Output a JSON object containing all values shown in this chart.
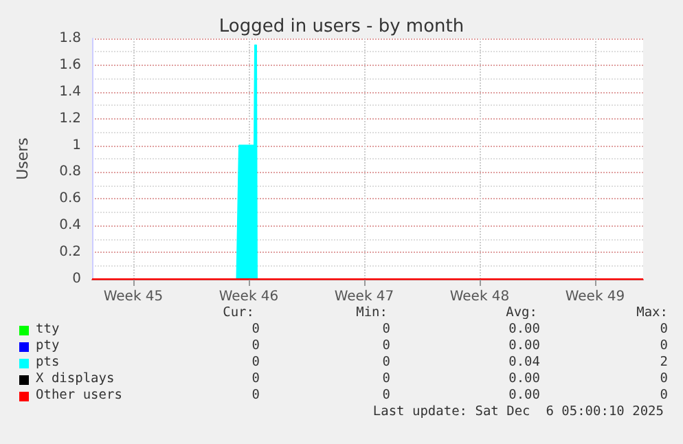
{
  "chart_data": {
    "type": "area",
    "title": "Logged in users - by month",
    "ylabel": "Users",
    "xlim": [
      "2025-11-02T19:00",
      "2025-12-06T05:00"
    ],
    "xticks": [
      {
        "value": "2025-11-05T07:00",
        "label": "Week 45"
      },
      {
        "value": "2025-11-12T07:00",
        "label": "Week 46"
      },
      {
        "value": "2025-11-19T07:00",
        "label": "Week 47"
      },
      {
        "value": "2025-11-26T07:00",
        "label": "Week 48"
      },
      {
        "value": "2025-12-03T07:00",
        "label": "Week 49"
      }
    ],
    "ylim": [
      0,
      1.8
    ],
    "yticks": [
      0,
      0.2,
      0.4,
      0.6,
      0.8,
      1.0,
      1.2,
      1.4,
      1.6,
      1.8
    ],
    "grid": true,
    "legend": "bottom",
    "marker": "none",
    "series": [
      {
        "name": "tty",
        "type": "line",
        "color": "#00ff00"
      },
      {
        "name": "pty",
        "type": "line",
        "color": "#0000ff"
      },
      {
        "name": "pts",
        "color": "#00ffff",
        "x": [
          "2025-11-02T19:00",
          "2025-11-11T13:30",
          "2025-11-11T17:00",
          "2025-11-12T15:00",
          "2025-11-12T16:00",
          "2025-11-12T18:00",
          "2025-11-12T19:00",
          "2025-12-06T05:00"
        ],
        "values": [
          0,
          0,
          1,
          1,
          1.75,
          1.75,
          0,
          0
        ]
      },
      {
        "name": "X displays",
        "type": "line",
        "color": "#000000"
      },
      {
        "name": "Other users",
        "type": "line",
        "color": "#ff0000",
        "x": [
          "2025-11-02T19:00",
          "2025-12-06T05:00"
        ],
        "values": [
          0,
          0
        ]
      }
    ],
    "annotations": [
      "Cur:",
      "Min:",
      "Avg:",
      "Max:",
      "0",
      "0",
      "0.00",
      "0",
      "0",
      "0",
      "0.00",
      "0",
      "0",
      "0",
      "0.04",
      "2",
      "0",
      "0",
      "0.00",
      "0",
      "0",
      "0",
      "0.00",
      "0",
      "Last update: Sat Dec  6 05:00:10 2025"
    ]
  }
}
